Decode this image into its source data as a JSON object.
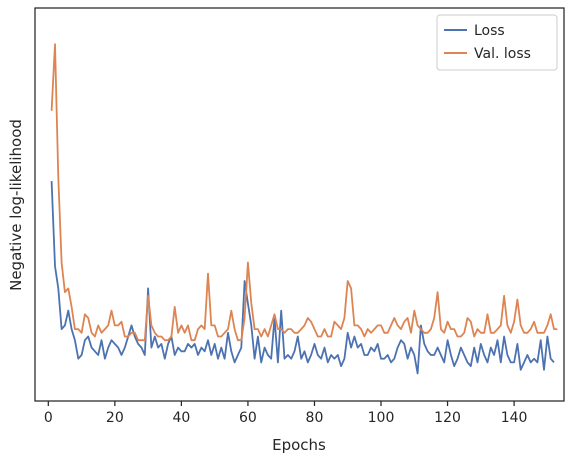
{
  "chart_data": {
    "type": "line",
    "title": "",
    "xlabel": "Epochs",
    "ylabel": "Negative log-likelihood",
    "xlim": [
      -4,
      155
    ],
    "ylim": [
      0,
      100
    ],
    "x_ticks": [
      0,
      20,
      40,
      60,
      80,
      100,
      120,
      140
    ],
    "y_ticks_labeled": false,
    "grid": false,
    "legend": {
      "position": "top-right"
    },
    "series": [
      {
        "name": "Loss",
        "color": "#4c72b0",
        "x_start": 1,
        "values": [
          57,
          34,
          28,
          17,
          18,
          22,
          17,
          14,
          9,
          10,
          14,
          15,
          12,
          11,
          10,
          14,
          9,
          12,
          14,
          13,
          12,
          10,
          12,
          15,
          18,
          15,
          13,
          12,
          10,
          28,
          12,
          15,
          12,
          13,
          9,
          13,
          15,
          10,
          12,
          11,
          11,
          13,
          12,
          13,
          10,
          12,
          11,
          14,
          10,
          13,
          9,
          12,
          9,
          16,
          11,
          8,
          10,
          12,
          30,
          24,
          18,
          9,
          15,
          8,
          12,
          10,
          9,
          20,
          8,
          22,
          9,
          10,
          9,
          11,
          15,
          9,
          11,
          8,
          10,
          13,
          10,
          9,
          12,
          8,
          10,
          9,
          10,
          7,
          9,
          16,
          12,
          15,
          12,
          13,
          10,
          10,
          12,
          11,
          13,
          9,
          9,
          10,
          8,
          9,
          12,
          14,
          13,
          9,
          12,
          10,
          5,
          18,
          13,
          11,
          10,
          10,
          12,
          10,
          8,
          14,
          10,
          7,
          9,
          12,
          10,
          8,
          7,
          12,
          8,
          13,
          10,
          8,
          12,
          10,
          14,
          8,
          15,
          10,
          8,
          8,
          13,
          6,
          8,
          10,
          8,
          9,
          8,
          14,
          6,
          15,
          9,
          8
        ]
      },
      {
        "name": "Val. loss",
        "color": "#dd8452",
        "x_start": 1,
        "values": [
          76,
          94,
          58,
          35,
          27,
          28,
          23,
          17,
          17,
          16,
          21,
          20,
          16,
          15,
          18,
          16,
          17,
          18,
          22,
          18,
          18,
          19,
          15,
          15,
          16,
          16,
          14,
          14,
          14,
          26,
          18,
          16,
          15,
          15,
          14,
          14,
          15,
          23,
          16,
          18,
          16,
          18,
          14,
          14,
          17,
          18,
          17,
          32,
          18,
          18,
          15,
          15,
          16,
          17,
          22,
          17,
          14,
          14,
          20,
          35,
          24,
          17,
          17,
          15,
          17,
          15,
          18,
          21,
          17,
          17,
          16,
          17,
          17,
          16,
          16,
          17,
          18,
          20,
          19,
          17,
          15,
          15,
          17,
          15,
          15,
          19,
          18,
          17,
          20,
          30,
          28,
          18,
          18,
          17,
          15,
          17,
          16,
          17,
          18,
          18,
          16,
          16,
          18,
          20,
          18,
          17,
          19,
          20,
          16,
          22,
          18,
          17,
          16,
          16,
          17,
          20,
          27,
          17,
          16,
          19,
          17,
          17,
          15,
          15,
          16,
          20,
          19,
          15,
          17,
          16,
          16,
          21,
          16,
          16,
          17,
          18,
          26,
          18,
          16,
          19,
          25,
          18,
          16,
          16,
          17,
          19,
          16,
          16,
          16,
          18,
          21,
          17,
          17
        ]
      }
    ]
  }
}
